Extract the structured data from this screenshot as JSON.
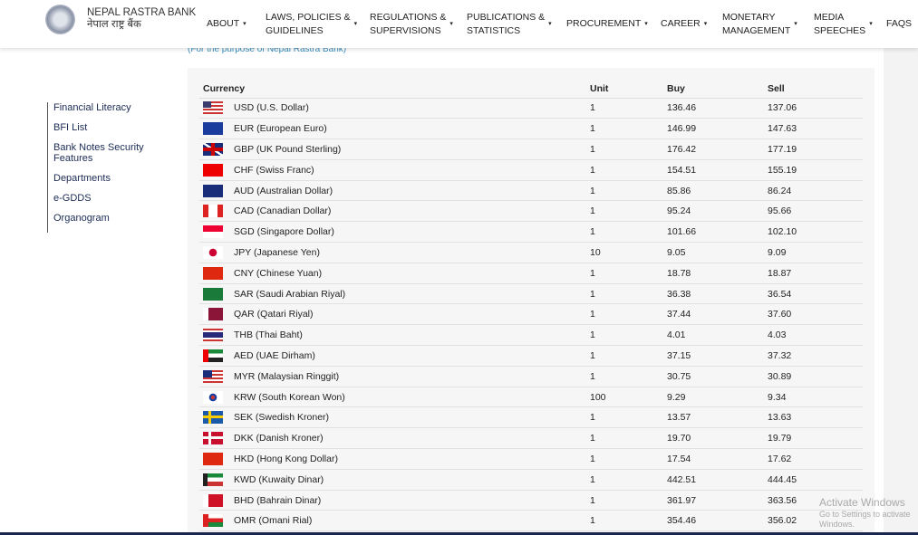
{
  "header": {
    "bank_name_en": "NEPAL RASTRA BANK",
    "bank_name_np": "नेपाल राष्ट्र बैंक",
    "nav": [
      {
        "label": "ABOUT",
        "l2": ""
      },
      {
        "label": "LAWS, POLICIES &",
        "l2": "GUIDELINES"
      },
      {
        "label": "REGULATIONS &",
        "l2": "SUPERVISIONS"
      },
      {
        "label": "PUBLICATIONS &",
        "l2": "STATISTICS"
      },
      {
        "label": "PROCUREMENT",
        "l2": ""
      },
      {
        "label": "CAREER",
        "l2": ""
      },
      {
        "label": "MONETARY",
        "l2": "MANAGEMENT"
      },
      {
        "label": "MEDIA",
        "l2": "SPEECHES"
      },
      {
        "label": "FAQS",
        "l2": ""
      }
    ],
    "caret": "▾"
  },
  "sidebar": {
    "items": [
      "Financial Literacy",
      "BFI List",
      "Bank Notes Security Features",
      "Departments",
      "e-GDDS",
      "Organogram"
    ]
  },
  "main": {
    "purpose_note": "(For the purpose of Nepal Rastra Bank)",
    "columns": [
      "Currency",
      "Unit",
      "Buy",
      "Sell"
    ],
    "rows": [
      {
        "code": "USD",
        "name": "USD (U.S. Dollar)",
        "unit": "1",
        "buy": "136.46",
        "sell": "137.06"
      },
      {
        "code": "EUR",
        "name": "EUR (European Euro)",
        "unit": "1",
        "buy": "146.99",
        "sell": "147.63"
      },
      {
        "code": "GBP",
        "name": "GBP (UK Pound Sterling)",
        "unit": "1",
        "buy": "176.42",
        "sell": "177.19"
      },
      {
        "code": "CHF",
        "name": "CHF (Swiss Franc)",
        "unit": "1",
        "buy": "154.51",
        "sell": "155.19"
      },
      {
        "code": "AUD",
        "name": "AUD (Australian Dollar)",
        "unit": "1",
        "buy": "85.86",
        "sell": "86.24"
      },
      {
        "code": "CAD",
        "name": "CAD (Canadian Dollar)",
        "unit": "1",
        "buy": "95.24",
        "sell": "95.66"
      },
      {
        "code": "SGD",
        "name": "SGD (Singapore Dollar)",
        "unit": "1",
        "buy": "101.66",
        "sell": "102.10"
      },
      {
        "code": "JPY",
        "name": "JPY (Japanese Yen)",
        "unit": "10",
        "buy": "9.05",
        "sell": "9.09"
      },
      {
        "code": "CNY",
        "name": "CNY (Chinese Yuan)",
        "unit": "1",
        "buy": "18.78",
        "sell": "18.87"
      },
      {
        "code": "SAR",
        "name": "SAR (Saudi Arabian Riyal)",
        "unit": "1",
        "buy": "36.38",
        "sell": "36.54"
      },
      {
        "code": "QAR",
        "name": "QAR (Qatari Riyal)",
        "unit": "1",
        "buy": "37.44",
        "sell": "37.60"
      },
      {
        "code": "THB",
        "name": "THB (Thai Baht)",
        "unit": "1",
        "buy": "4.01",
        "sell": "4.03"
      },
      {
        "code": "AED",
        "name": "AED (UAE Dirham)",
        "unit": "1",
        "buy": "37.15",
        "sell": "37.32"
      },
      {
        "code": "MYR",
        "name": "MYR (Malaysian Ringgit)",
        "unit": "1",
        "buy": "30.75",
        "sell": "30.89"
      },
      {
        "code": "KRW",
        "name": "KRW (South Korean Won)",
        "unit": "100",
        "buy": "9.29",
        "sell": "9.34"
      },
      {
        "code": "SEK",
        "name": "SEK (Swedish Kroner)",
        "unit": "1",
        "buy": "13.57",
        "sell": "13.63"
      },
      {
        "code": "DKK",
        "name": "DKK (Danish Kroner)",
        "unit": "1",
        "buy": "19.70",
        "sell": "19.79"
      },
      {
        "code": "HKD",
        "name": "HKD (Hong Kong Dollar)",
        "unit": "1",
        "buy": "17.54",
        "sell": "17.62"
      },
      {
        "code": "KWD",
        "name": "KWD (Kuwaity Dinar)",
        "unit": "1",
        "buy": "442.51",
        "sell": "444.45"
      },
      {
        "code": "BHD",
        "name": "BHD (Bahrain Dinar)",
        "unit": "1",
        "buy": "361.97",
        "sell": "363.56"
      },
      {
        "code": "OMR",
        "name": "OMR (Omani Rial)",
        "unit": "1",
        "buy": "354.46",
        "sell": "356.02"
      }
    ]
  },
  "watermark": {
    "line1": "Activate Windows",
    "line2": "Go to Settings to activate Windows."
  }
}
